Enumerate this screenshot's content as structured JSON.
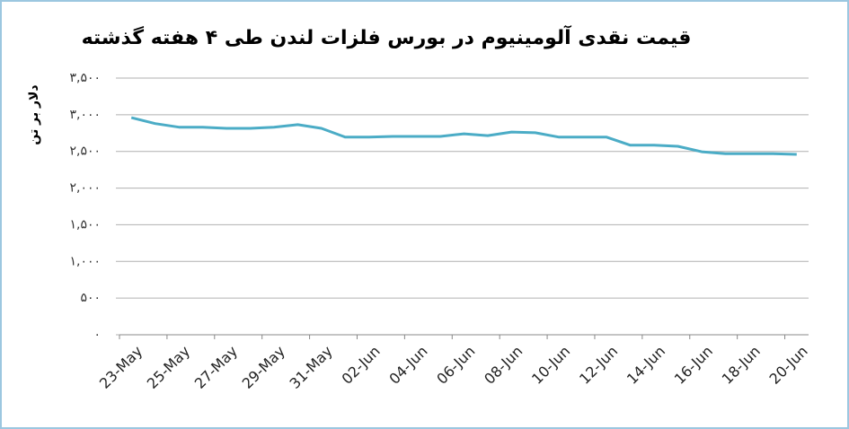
{
  "chart_data": {
    "type": "line",
    "title": "قیمت نقدی آلومینیوم در بورس فلزات لندن طی ۴ هفته گذشته",
    "y_label": "دلار بر تن",
    "categories": [
      "23-May",
      null,
      "25-May",
      null,
      "27-May",
      null,
      "29-May",
      null,
      "31-May",
      null,
      "02-Jun",
      null,
      "04-Jun",
      null,
      "06-Jun",
      null,
      "08-Jun",
      null,
      "10-Jun",
      null,
      "12-Jun",
      null,
      "14-Jun",
      null,
      "16-Jun",
      null,
      "18-Jun",
      null,
      "20-Jun"
    ],
    "values": [
      2960,
      2880,
      2830,
      2830,
      2815,
      2815,
      2830,
      2865,
      2815,
      2695,
      2695,
      2705,
      2705,
      2705,
      2740,
      2715,
      2765,
      2755,
      2695,
      2695,
      2695,
      2585,
      2585,
      2570,
      2495,
      2470,
      2470,
      2470,
      2460
    ],
    "color": "#4bacc6",
    "ylim": [
      0,
      3500
    ],
    "yticks": [
      {
        "value": 0,
        "label": "۰"
      },
      {
        "value": 500,
        "label": "۵۰۰"
      },
      {
        "value": 1000,
        "label": "۱,۰۰۰"
      },
      {
        "value": 1500,
        "label": "۱,۵۰۰"
      },
      {
        "value": 2000,
        "label": "۲,۰۰۰"
      },
      {
        "value": 2500,
        "label": "۲,۵۰۰"
      },
      {
        "value": 3000,
        "label": "۳,۰۰۰"
      },
      {
        "value": 3500,
        "label": "۳,۵۰۰"
      }
    ],
    "grid": true
  }
}
